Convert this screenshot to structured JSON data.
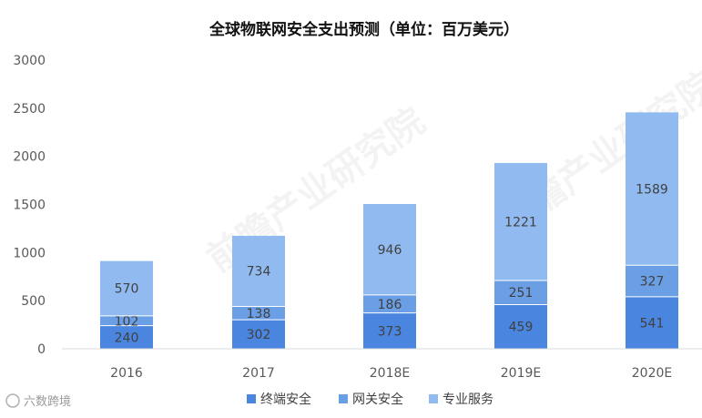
{
  "chart_data": {
    "type": "bar",
    "stacked": true,
    "title": "全球物联网安全支出预测（单位：百万美元）",
    "categories": [
      "2016",
      "2017",
      "2018E",
      "2019E",
      "2020E"
    ],
    "series": [
      {
        "name": "终端安全",
        "values": [
          240,
          302,
          373,
          459,
          541
        ],
        "color": "#4a86e0"
      },
      {
        "name": "网关安全",
        "values": [
          102,
          138,
          186,
          251,
          327
        ],
        "color": "#6a9fe6"
      },
      {
        "name": "专业服务",
        "values": [
          570,
          734,
          946,
          1221,
          1589
        ],
        "color": "#91bbf0"
      }
    ],
    "ylim": [
      0,
      3000
    ],
    "yticks": [
      0,
      500,
      1000,
      1500,
      2000,
      2500,
      3000
    ],
    "grid": false,
    "legend_position": "bottom"
  },
  "watermark": {
    "text": "前瞻产业研究院"
  },
  "credit": {
    "text": "六数跨境"
  }
}
